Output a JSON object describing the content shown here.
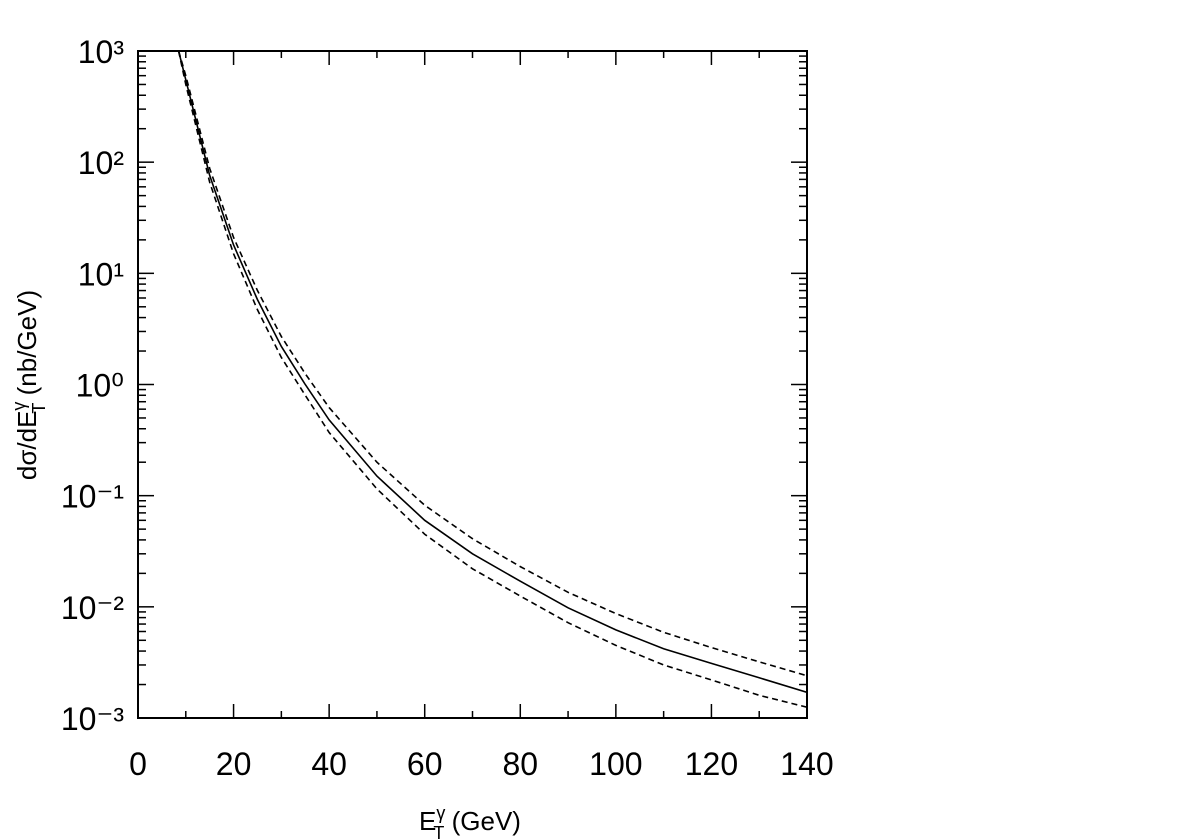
{
  "chart_data": {
    "type": "line",
    "xlabel": {
      "base": "E",
      "sup": "γ",
      "sub": "T",
      "rest": " (GeV)"
    },
    "ylabel": {
      "base": "dσ/dE",
      "sup": "γ",
      "sub": "T",
      "rest": " (nb/GeV)"
    },
    "x": [
      8.5,
      10,
      15,
      20,
      25,
      30,
      35,
      40,
      50,
      60,
      70,
      80,
      90,
      100,
      110,
      120,
      130,
      140
    ],
    "series": [
      {
        "color": "#000000",
        "style": "solid",
        "values": [
          1000,
          550,
          76,
          18,
          5.8,
          2.2,
          1.0,
          0.48,
          0.15,
          0.06,
          0.03,
          0.017,
          0.0098,
          0.0062,
          0.0042,
          0.0031,
          0.0023,
          0.0017
        ]
      },
      {
        "color": "#000000",
        "style": "dashed",
        "values": [
          1000,
          600,
          88,
          21,
          7,
          2.7,
          1.25,
          0.62,
          0.2,
          0.082,
          0.041,
          0.023,
          0.0135,
          0.0087,
          0.0059,
          0.0043,
          0.0032,
          0.0024
        ]
      },
      {
        "color": "#000000",
        "style": "dashed",
        "values": [
          1000,
          500,
          66,
          15,
          4.7,
          1.75,
          0.8,
          0.37,
          0.115,
          0.045,
          0.022,
          0.0125,
          0.0072,
          0.0045,
          0.003,
          0.0022,
          0.0016,
          0.00125
        ]
      }
    ],
    "xlim": [
      0,
      140
    ],
    "xticks": [
      0,
      20,
      40,
      60,
      80,
      100,
      120,
      140
    ],
    "ylim": [
      0.001,
      1000
    ],
    "ylog": true,
    "yticks": [
      {
        "value": 0.001,
        "label": "10⁻³"
      },
      {
        "value": 0.01,
        "label": "10⁻²"
      },
      {
        "value": 0.1,
        "label": "10⁻¹"
      },
      {
        "value": 1,
        "label": "10⁰"
      },
      {
        "value": 10,
        "label": "10¹"
      },
      {
        "value": 100,
        "label": "10²"
      },
      {
        "value": 1000,
        "label": "10³"
      }
    ],
    "grid": false
  }
}
